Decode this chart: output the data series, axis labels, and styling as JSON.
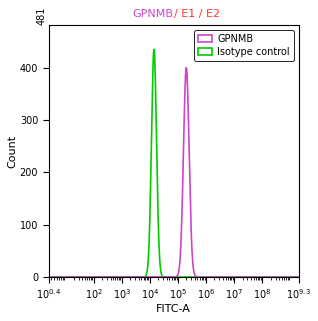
{
  "title_part1": "GPNMB",
  "title_part2": "/ E1 / E2",
  "title_color1": "#cc44cc",
  "title_color2": "#ff3333",
  "xlabel": "FITC-A",
  "ylabel": "Count",
  "xlim_log": [
    0.4,
    9.3
  ],
  "ylim": [
    0,
    481
  ],
  "yticks": [
    0,
    100,
    200,
    300,
    400
  ],
  "ytop_label": "481",
  "green_peak_log": 4.15,
  "green_peak_height": 435,
  "green_sigma_log": 0.09,
  "magenta_peak_log": 5.3,
  "magenta_peak_height": 400,
  "magenta_sigma_log": 0.1,
  "green_color": "#00cc00",
  "magenta_color": "#cc44cc",
  "legend_label_gpnmb": "GPNMB",
  "legend_label_isotype": "Isotype control",
  "bg_color": "#ffffff",
  "xtick_positions": [
    0.4,
    2,
    3,
    4,
    5,
    6,
    7,
    8,
    9.3
  ],
  "title_fontsize": 8,
  "axis_label_fontsize": 8,
  "tick_fontsize": 7,
  "legend_fontsize": 7,
  "linewidth": 1.2
}
